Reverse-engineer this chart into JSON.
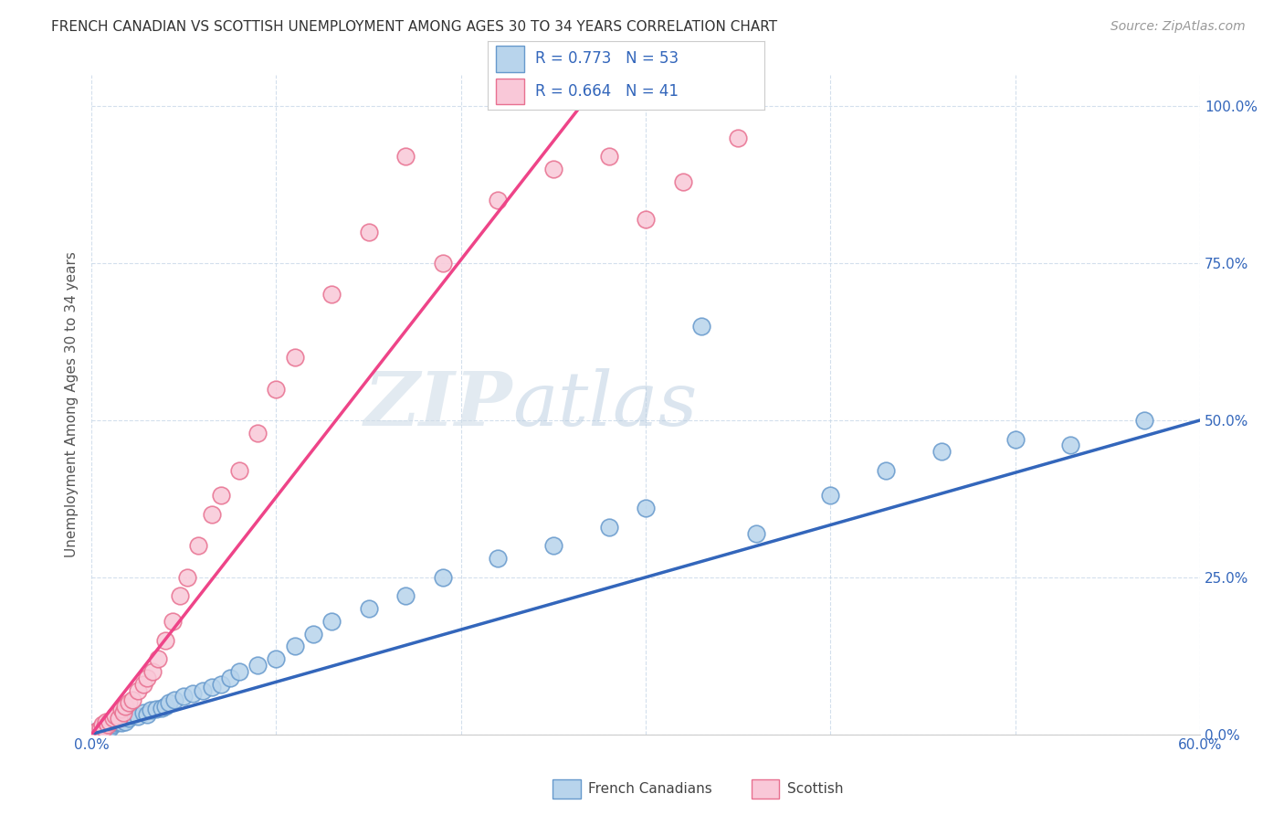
{
  "title": "FRENCH CANADIAN VS SCOTTISH UNEMPLOYMENT AMONG AGES 30 TO 34 YEARS CORRELATION CHART",
  "source": "Source: ZipAtlas.com",
  "ylabel": "Unemployment Among Ages 30 to 34 years",
  "xmin": 0.0,
  "xmax": 0.6,
  "ymin": 0.0,
  "ymax": 1.05,
  "xtick_values": [
    0.0,
    0.1,
    0.2,
    0.3,
    0.4,
    0.5,
    0.6
  ],
  "ytick_values": [
    0.0,
    0.25,
    0.5,
    0.75,
    1.0
  ],
  "french_color": "#b8d4ec",
  "french_edge": "#6699cc",
  "scottish_color": "#f9c8d8",
  "scottish_edge": "#e87090",
  "trend_french_color": "#3366bb",
  "trend_scottish_color": "#ee4488",
  "watermark_zip": "ZIP",
  "watermark_atlas": "atlas",
  "legend_r_french": "R = 0.773",
  "legend_n_french": "N = 53",
  "legend_r_scottish": "R = 0.664",
  "legend_n_scottish": "N = 41",
  "french_x": [
    0.003,
    0.005,
    0.006,
    0.007,
    0.008,
    0.009,
    0.01,
    0.01,
    0.012,
    0.013,
    0.014,
    0.015,
    0.016,
    0.017,
    0.018,
    0.02,
    0.022,
    0.025,
    0.028,
    0.03,
    0.032,
    0.035,
    0.038,
    0.04,
    0.042,
    0.045,
    0.05,
    0.055,
    0.06,
    0.065,
    0.07,
    0.075,
    0.08,
    0.09,
    0.1,
    0.11,
    0.12,
    0.13,
    0.15,
    0.17,
    0.19,
    0.22,
    0.25,
    0.28,
    0.3,
    0.33,
    0.36,
    0.4,
    0.43,
    0.46,
    0.5,
    0.53,
    0.57
  ],
  "french_y": [
    0.005,
    0.008,
    0.01,
    0.012,
    0.007,
    0.015,
    0.01,
    0.02,
    0.015,
    0.018,
    0.02,
    0.022,
    0.018,
    0.025,
    0.02,
    0.025,
    0.03,
    0.028,
    0.035,
    0.032,
    0.038,
    0.04,
    0.042,
    0.045,
    0.05,
    0.055,
    0.06,
    0.065,
    0.07,
    0.075,
    0.08,
    0.09,
    0.1,
    0.11,
    0.12,
    0.14,
    0.16,
    0.18,
    0.2,
    0.22,
    0.25,
    0.28,
    0.3,
    0.33,
    0.36,
    0.65,
    0.32,
    0.38,
    0.42,
    0.45,
    0.47,
    0.46,
    0.5
  ],
  "scottish_x": [
    0.003,
    0.005,
    0.006,
    0.007,
    0.008,
    0.009,
    0.01,
    0.012,
    0.013,
    0.015,
    0.016,
    0.017,
    0.018,
    0.02,
    0.022,
    0.025,
    0.028,
    0.03,
    0.033,
    0.036,
    0.04,
    0.044,
    0.048,
    0.052,
    0.058,
    0.065,
    0.07,
    0.08,
    0.09,
    0.1,
    0.11,
    0.13,
    0.15,
    0.17,
    0.19,
    0.22,
    0.25,
    0.28,
    0.3,
    0.32,
    0.35
  ],
  "scottish_y": [
    0.005,
    0.01,
    0.015,
    0.01,
    0.02,
    0.015,
    0.02,
    0.025,
    0.03,
    0.025,
    0.04,
    0.035,
    0.045,
    0.05,
    0.055,
    0.07,
    0.08,
    0.09,
    0.1,
    0.12,
    0.15,
    0.18,
    0.22,
    0.25,
    0.3,
    0.35,
    0.38,
    0.42,
    0.48,
    0.55,
    0.6,
    0.7,
    0.8,
    0.92,
    0.75,
    0.85,
    0.9,
    0.92,
    0.82,
    0.88,
    0.95
  ],
  "trend_french_x0": 0.0,
  "trend_french_y0": 0.0,
  "trend_french_x1": 0.6,
  "trend_french_y1": 0.5,
  "trend_scottish_x0": 0.0,
  "trend_scottish_y0": 0.0,
  "trend_scottish_x1": 0.27,
  "trend_scottish_y1": 1.02
}
